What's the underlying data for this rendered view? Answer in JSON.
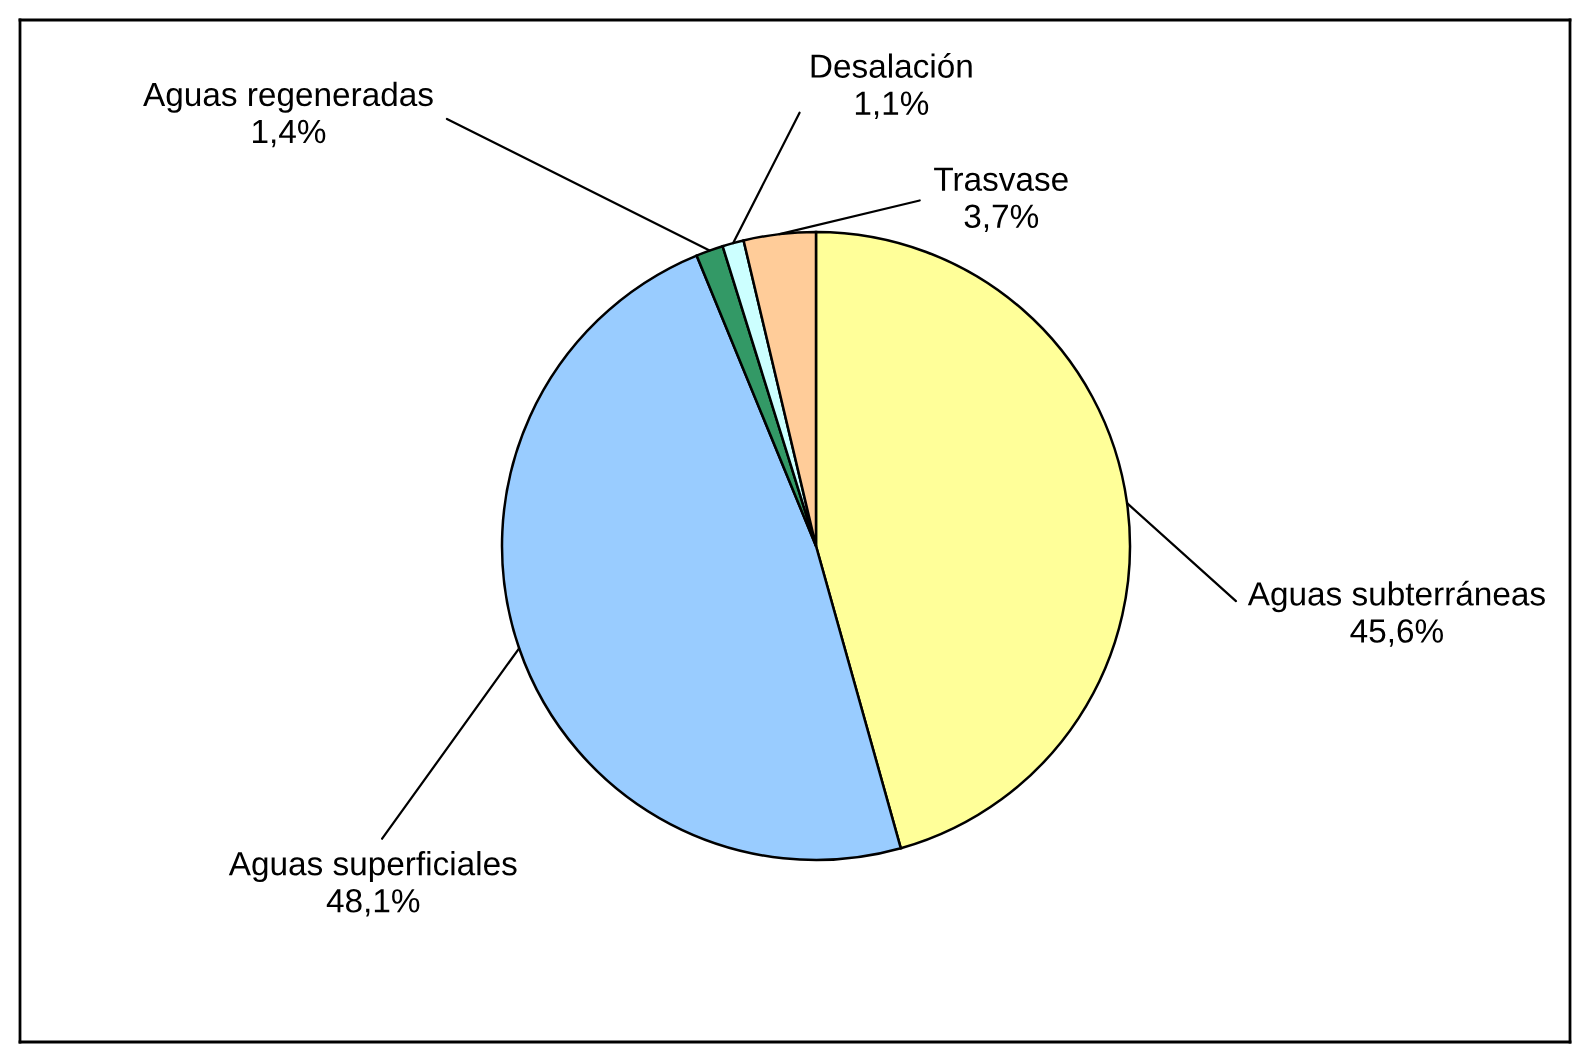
{
  "chart_data": {
    "type": "pie",
    "categories": [
      "Aguas subterráneas",
      "Aguas superficiales",
      "Aguas regeneradas",
      "Desalación",
      "Trasvase"
    ],
    "values": [
      45.6,
      48.1,
      1.4,
      1.1,
      3.7
    ],
    "value_labels": [
      "45,6%",
      "48,1%",
      "1,4%",
      "1,1%",
      "3,7%"
    ],
    "colors": [
      "#ffff99",
      "#99ccff",
      "#339966",
      "#ccffff",
      "#ffcc99"
    ]
  }
}
